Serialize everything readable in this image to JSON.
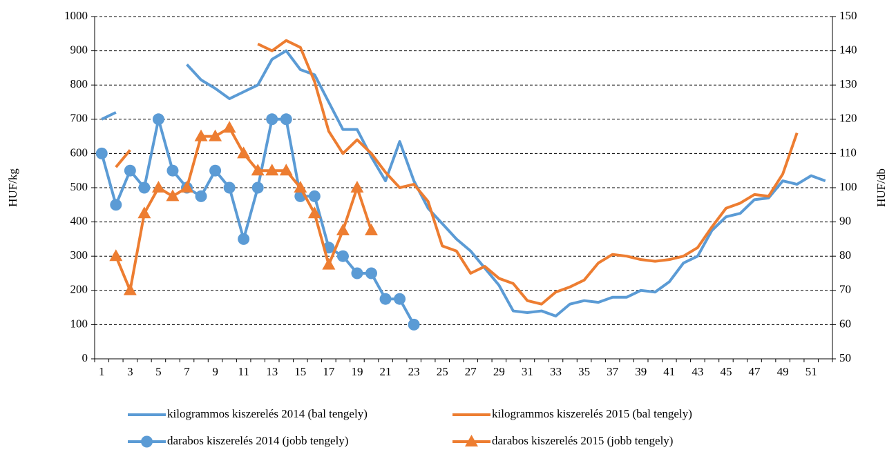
{
  "chart_data": {
    "type": "line",
    "categories": [
      1,
      null,
      3,
      null,
      5,
      null,
      7,
      null,
      9,
      null,
      11,
      null,
      13,
      null,
      15,
      null,
      17,
      null,
      19,
      null,
      21,
      null,
      23,
      null,
      25,
      null,
      27,
      null,
      29,
      null,
      31,
      null,
      33,
      null,
      35,
      null,
      37,
      null,
      39,
      null,
      41,
      null,
      43,
      null,
      45,
      null,
      47,
      null,
      49,
      null,
      51,
      null
    ],
    "ylabel": "HUF/kg",
    "y2label": "HUF/db",
    "ylim": [
      0,
      1000
    ],
    "yticks": [
      0,
      100,
      200,
      300,
      400,
      500,
      600,
      700,
      800,
      900,
      1000
    ],
    "y2lim": [
      50,
      150
    ],
    "y2ticks": [
      50,
      60,
      70,
      80,
      90,
      100,
      110,
      120,
      130,
      140,
      150
    ],
    "grid": true,
    "legend": "bottom",
    "series": [
      {
        "name": "kilogrammos kiszerelés 2014 (bal tengely)",
        "color": "#5b9bd5",
        "marker": "none",
        "values": [
          700,
          720,
          null,
          null,
          null,
          null,
          860,
          815,
          790,
          760,
          780,
          800,
          875,
          900,
          845,
          830,
          750,
          670,
          670,
          590,
          520,
          635,
          520,
          440,
          395,
          350,
          315,
          265,
          215,
          140,
          135,
          140,
          125,
          160,
          170,
          165,
          180,
          180,
          200,
          195,
          225,
          280,
          300,
          375,
          415,
          425,
          465,
          470,
          520,
          510,
          535,
          520
        ]
      },
      {
        "name": "kilogrammos kiszerelés 2015 (bal tengely)",
        "color": "#ed7d31",
        "marker": "none",
        "values": [
          null,
          560,
          610,
          null,
          null,
          null,
          null,
          null,
          null,
          null,
          null,
          920,
          900,
          930,
          910,
          810,
          665,
          600,
          640,
          600,
          545,
          500,
          510,
          460,
          330,
          315,
          250,
          270,
          235,
          220,
          170,
          160,
          195,
          210,
          230,
          280,
          305,
          300,
          290,
          285,
          290,
          300,
          325,
          385,
          440,
          455,
          480,
          475,
          540,
          660,
          null,
          null
        ]
      },
      {
        "name": "darabos kiszerelés 2014 (jobb tengely)",
        "color": "#5b9bd5",
        "marker": "circle",
        "axis": "y2",
        "values": [
          110,
          95,
          105,
          100,
          120,
          105,
          100,
          97.5,
          105,
          100,
          85,
          100,
          120,
          120,
          97.5,
          97.5,
          82.5,
          80,
          75,
          75,
          67.5,
          67.5,
          60,
          null,
          null,
          null,
          null,
          null,
          null,
          null,
          null,
          null,
          null,
          null,
          null,
          null,
          null,
          null,
          null,
          null,
          null,
          null,
          null,
          null,
          null,
          null,
          null,
          null,
          null,
          null,
          null,
          null
        ]
      },
      {
        "name": "darabos kiszerelés 2015 (jobb tengely)",
        "color": "#ed7d31",
        "marker": "triangle",
        "axis": "y2",
        "values": [
          null,
          80,
          70,
          92.5,
          100,
          97.5,
          100,
          115,
          115,
          117.5,
          110,
          105,
          105,
          105,
          100,
          92.5,
          77.5,
          87.5,
          100,
          87.5,
          null,
          null,
          null,
          null,
          null,
          null,
          null,
          null,
          null,
          null,
          null,
          null,
          null,
          null,
          null,
          null,
          null,
          null,
          null,
          null,
          null,
          null,
          null,
          null,
          null,
          null,
          null,
          null,
          null,
          null,
          null,
          null
        ]
      }
    ]
  }
}
